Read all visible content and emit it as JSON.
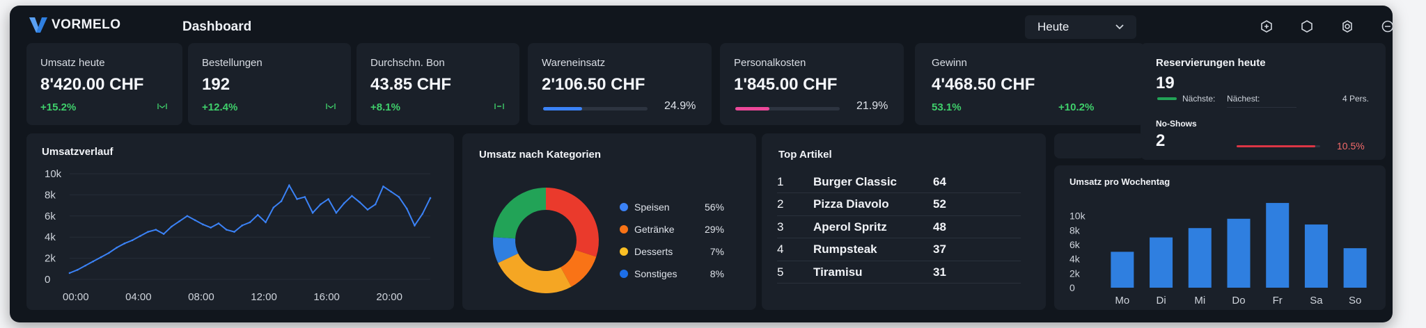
{
  "app": {
    "name": "VORMELO",
    "page_title": "Dashboard"
  },
  "period": {
    "selected": "Heute"
  },
  "toolbar_icons": [
    "plus-icon",
    "bell-icon",
    "settings-icon",
    "user-icon"
  ],
  "kpis": [
    {
      "label": "Umsatz heute",
      "value": "8'420.00 CHF",
      "delta": "+15.2%",
      "spark": true
    },
    {
      "label": "Bestellungen",
      "value": "192",
      "delta": "+12.4%",
      "spark": true
    },
    {
      "label": "Durchschn. Bon",
      "value": "43.85 CHF",
      "delta": "+8.1%",
      "spark": true
    },
    {
      "label": "Wareneinsatz",
      "value": "2'106.50 CHF",
      "pct": "24.9%",
      "progress": 0.249,
      "bar_color": "#3b82f6"
    },
    {
      "label": "Personalkosten",
      "value": "1'845.00 CHF",
      "pct": "21.9%",
      "progress": 0.219,
      "bar_color": "#ec4899"
    },
    {
      "label": "Gewinn",
      "value": "4'468.50 CHF",
      "margin": "53.1%",
      "delta": "+10.2%"
    }
  ],
  "reservations": {
    "title": "Reservierungen heute",
    "count": "19",
    "next_label": "Nächste:",
    "next2_label": "Nächest:",
    "persons": "4 Pers.",
    "noshow_label": "No-Shows",
    "noshow_count": "2",
    "noshow_pct": "10.5%",
    "noshow_progress": 0.105
  },
  "revenue_chart": {
    "title": "Umsatzverlauf",
    "chart_data": {
      "type": "line",
      "title": "Umsatzverlauf",
      "xlabel": "",
      "ylabel": "",
      "x_ticks": [
        "00:00",
        "04:00",
        "08:00",
        "12:00",
        "16:00",
        "20:00"
      ],
      "y_ticks": [
        "10k",
        "8k",
        "6k",
        "4k",
        "2k",
        "0"
      ],
      "xlim": [
        0,
        23
      ],
      "ylim": [
        0,
        10000
      ],
      "series": [
        {
          "color": "#3b82f6",
          "x": [
            0,
            0.5,
            1,
            1.5,
            2,
            2.5,
            3,
            3.5,
            4,
            4.5,
            5,
            5.5,
            6,
            6.5,
            7,
            7.5,
            8,
            8.5,
            9,
            9.5,
            10,
            10.5,
            11,
            11.5,
            12,
            12.5,
            13,
            13.5,
            14,
            14.5,
            15,
            15.5,
            16,
            16.5,
            17,
            17.5,
            18,
            18.5,
            19,
            19.5,
            20,
            20.5,
            21,
            21.5,
            22,
            22.5,
            23
          ],
          "y": [
            600,
            900,
            1300,
            1700,
            2100,
            2500,
            3000,
            3400,
            3700,
            4100,
            4500,
            4700,
            4300,
            5000,
            5500,
            6000,
            5600,
            5200,
            4900,
            5300,
            4700,
            4500,
            5100,
            5400,
            6100,
            5400,
            6800,
            7400,
            8900,
            7600,
            7800,
            6300,
            7100,
            7600,
            6300,
            7200,
            7900,
            7300,
            6600,
            7100,
            8800,
            8300,
            7800,
            6700,
            5100,
            6200,
            7700
          ]
        }
      ]
    }
  },
  "category_chart": {
    "title": "Umsatz nach Kategorien",
    "chart_data": {
      "type": "pie",
      "title": "Umsatz nach Kategorien",
      "categories": [
        "Speisen",
        "Getränke",
        "Desserts",
        "Sonstiges"
      ],
      "values": [
        56,
        29,
        7,
        8
      ],
      "labels": [
        "56%",
        "29%",
        "7%",
        "8%"
      ],
      "colors": [
        "#3b82f6",
        "#f97316",
        "#fbbf24",
        "#1d6fe8"
      ],
      "ring_colors": [
        "#ea3a2c",
        "#f5a623",
        "#2f7fe0",
        "#22a357"
      ]
    }
  },
  "top_articles": {
    "title": "Top Artikel",
    "items": [
      {
        "rank": "1",
        "name": "Burger Classic",
        "qty": "64"
      },
      {
        "rank": "2",
        "name": "Pizza Diavolo",
        "qty": "52"
      },
      {
        "rank": "3",
        "name": "Aperol Spritz",
        "qty": "48"
      },
      {
        "rank": "4",
        "name": "Rumpsteak",
        "qty": "37"
      },
      {
        "rank": "5",
        "name": "Tiramisu",
        "qty": "31"
      }
    ]
  },
  "weekday_chart": {
    "title": "Umsatz pro Wochentag",
    "chart_data": {
      "type": "bar",
      "title": "Umsatz pro Wochentag",
      "xlabel": "",
      "ylabel": "",
      "categories": [
        "Mo",
        "Di",
        "Mi",
        "Do",
        "Fr",
        "Sa",
        "So"
      ],
      "y_ticks": [
        "10k",
        "8k",
        "6k",
        "4k",
        "2k",
        "0"
      ],
      "values": [
        5000,
        7000,
        8300,
        9600,
        11800,
        8800,
        5500
      ],
      "ylim": [
        0,
        12000
      ],
      "color": "#2f7fe0"
    }
  }
}
